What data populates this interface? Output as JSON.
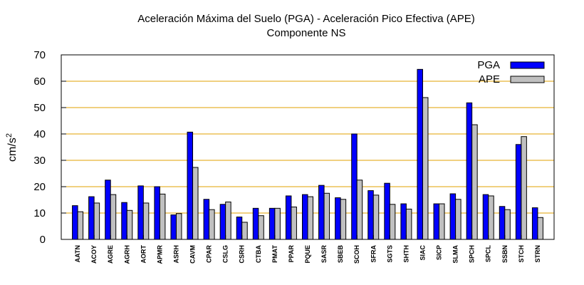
{
  "chart_data": {
    "type": "bar",
    "title": "Aceleración Máxima del Suelo (PGA) -  Aceleración Pico Efectiva (APE)",
    "subtitle": "Componente NS",
    "ylabel": "cm/s",
    "ylabel_superscript": "2",
    "xlabel": "",
    "ylim": [
      0,
      70
    ],
    "yticks": [
      0,
      10,
      20,
      30,
      40,
      50,
      60,
      70
    ],
    "grid": true,
    "legend_position": "top-right",
    "categories": [
      "AATN",
      "ACOY",
      "AGRE",
      "AGRH",
      "AORT",
      "APMR",
      "ASRH",
      "CAVM",
      "CPAR",
      "CSLG",
      "CSRH",
      "CTBA",
      "PMAT",
      "PPAR",
      "PQUE",
      "SASR",
      "SBEB",
      "SCOH",
      "SFRA",
      "SGTS",
      "SHTH",
      "SIAC",
      "SICP",
      "SLMA",
      "SPCH",
      "SPCL",
      "SSBN",
      "STCH",
      "STRN"
    ],
    "series": [
      {
        "name": "PGA",
        "color": "#0000ff",
        "values": [
          12.8,
          16.2,
          22.5,
          14.0,
          20.3,
          20.0,
          9.3,
          40.7,
          15.2,
          13.3,
          8.5,
          11.8,
          11.8,
          16.5,
          17.0,
          20.5,
          15.8,
          40.0,
          18.5,
          21.3,
          13.5,
          64.5,
          13.5,
          17.3,
          51.8,
          17.0,
          12.5,
          36.0,
          12.0
        ]
      },
      {
        "name": "APE",
        "color": "#c0c0c0",
        "values": [
          10.5,
          13.8,
          17.0,
          11.0,
          13.8,
          17.2,
          9.8,
          27.3,
          11.3,
          14.2,
          6.5,
          9.0,
          11.8,
          12.3,
          16.2,
          17.5,
          15.2,
          22.5,
          16.8,
          13.3,
          11.5,
          53.8,
          13.5,
          15.2,
          43.5,
          16.5,
          11.3,
          39.0,
          8.3
        ]
      }
    ]
  },
  "colors": {
    "grid": "#e0a000",
    "axis": "#000000",
    "background": "#ffffff"
  }
}
